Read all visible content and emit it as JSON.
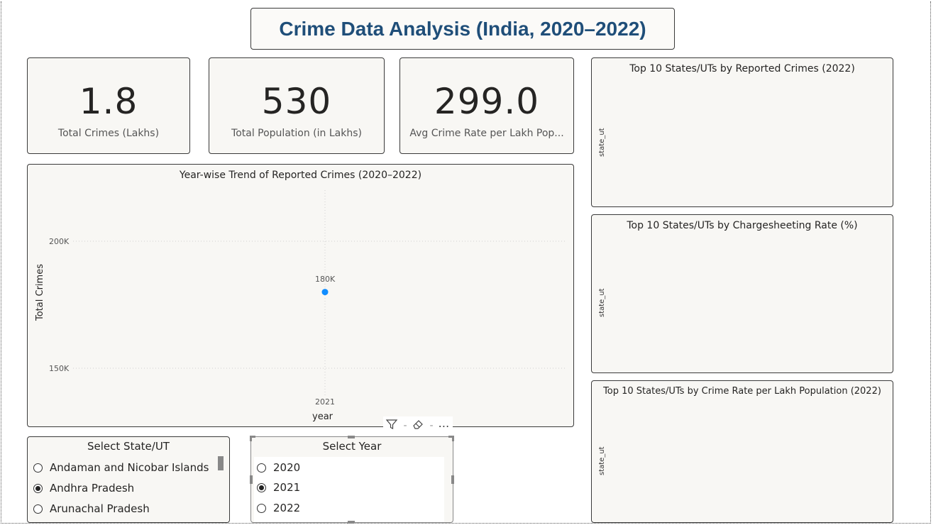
{
  "report": {
    "title": "Crime Data Analysis (India, 2020–2022)"
  },
  "kpis": [
    {
      "value": "1.8",
      "label": "Total Crimes (Lakhs)"
    },
    {
      "value": "530",
      "label": "Total Population (in Lakhs)"
    },
    {
      "value": "299.0",
      "label": "Avg Crime Rate per Lakh Pop..."
    }
  ],
  "trend_chart": {
    "title": "Year-wise Trend of Reported Crimes (2020–2022)",
    "xlabel": "year",
    "ylabel": "Total Crimes",
    "tick_200k": "200K",
    "tick_150k": "150K",
    "tick_2021": "2021",
    "point_label": "180K",
    "point_color": "#118dff"
  },
  "chart_data": [
    {
      "type": "line",
      "title": "Year-wise Trend of Reported Crimes (2020–2022)",
      "xlabel": "year",
      "ylabel": "Total Crimes",
      "x": [
        "2021"
      ],
      "series": [
        {
          "values": [
            180000
          ]
        }
      ],
      "data_labels": [
        "180K"
      ],
      "yticks": [
        "150K",
        "200K"
      ],
      "ylim": [
        140000,
        220000
      ],
      "grid": true
    },
    {
      "type": "bar",
      "title": "Top 10 States/UTs by Reported Crimes (2022)",
      "ylabel": "state_ut",
      "categories": [],
      "values": []
    },
    {
      "type": "bar",
      "title": "Top 10 States/UTs by Chargesheeting Rate (%)",
      "ylabel": "state_ut",
      "categories": [],
      "values": []
    },
    {
      "type": "bar",
      "title": "Top 10 States/UTs by Crime Rate per Lakh Population (2022)",
      "ylabel": "state_ut",
      "categories": [],
      "values": []
    }
  ],
  "bar_charts": [
    {
      "title": "Top 10 States/UTs by Reported Crimes (2022)",
      "axis": "state_ut"
    },
    {
      "title": "Top 10 States/UTs by Chargesheeting Rate (%)",
      "axis": "state_ut"
    },
    {
      "title": "Top 10 States/UTs by Crime Rate per Lakh Population (2022)",
      "axis": "state_ut"
    }
  ],
  "state_slicer": {
    "title": "Select State/UT",
    "items": [
      {
        "label": "Andaman and Nicobar Islands",
        "selected": false
      },
      {
        "label": "Andhra Pradesh",
        "selected": true
      },
      {
        "label": "Arunachal Pradesh",
        "selected": false
      }
    ]
  },
  "year_slicer": {
    "title": "Select Year",
    "items": [
      {
        "label": "2020",
        "selected": false
      },
      {
        "label": "2021",
        "selected": true
      },
      {
        "label": "2022",
        "selected": false
      }
    ]
  },
  "visual_toolbar": {
    "filter_icon": "filter-icon",
    "eraser_icon": "eraser-icon",
    "more_icon": "more-options-icon",
    "more_glyph": "⋯"
  }
}
